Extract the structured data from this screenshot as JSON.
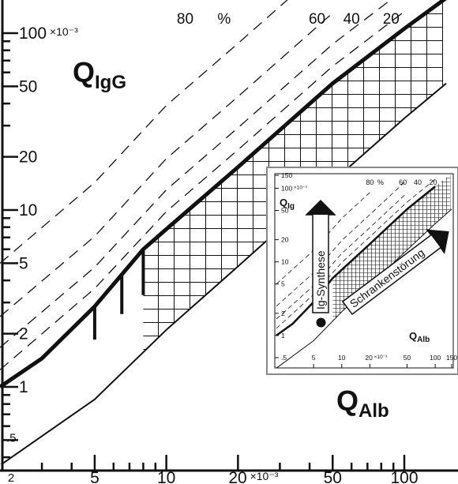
{
  "chart_data": [
    {
      "type": "line",
      "title": "",
      "xlabel": {
        "main": "Q",
        "sub": "Alb"
      },
      "ylabel": {
        "main": "Q",
        "sub": "IgG"
      },
      "x_scale": "log",
      "y_scale": "log",
      "xlim": [
        0.002,
        0.15
      ],
      "ylim": [
        0.0004,
        0.12
      ],
      "x_ticks": [
        {
          "value": 0.002,
          "label": "2"
        },
        {
          "value": 0.005,
          "label": "5"
        },
        {
          "value": 0.01,
          "label": "10"
        },
        {
          "value": 0.02,
          "label": "20",
          "unit": "×10⁻³"
        },
        {
          "value": 0.05,
          "label": "50"
        },
        {
          "value": 0.1,
          "label": "100"
        }
      ],
      "y_ticks": [
        {
          "value": 0.0005,
          "label": ".5"
        },
        {
          "value": 0.001,
          "label": "1"
        },
        {
          "value": 0.002,
          "label": "2"
        },
        {
          "value": 0.005,
          "label": "5"
        },
        {
          "value": 0.01,
          "label": "10"
        },
        {
          "value": 0.02,
          "label": "20"
        },
        {
          "value": 0.05,
          "label": "50"
        },
        {
          "value": 0.1,
          "label": "100",
          "unit": "×10⁻³"
        }
      ],
      "series": [
        {
          "role": "upper-reference",
          "style": "thick",
          "points": [
            [
              0.002,
              0.001
            ],
            [
              0.003,
              0.00145
            ],
            [
              0.005,
              0.00285
            ],
            [
              0.008,
              0.006
            ],
            [
              0.01,
              0.0078
            ],
            [
              0.02,
              0.0175
            ],
            [
              0.05,
              0.052
            ],
            [
              0.1,
              0.106
            ],
            [
              0.15,
              0.158
            ]
          ]
        },
        {
          "role": "lower-reference",
          "style": "thin",
          "points": [
            [
              0.002,
              0.00036
            ],
            [
              0.005,
              0.00085
            ],
            [
              0.01,
              0.0021
            ],
            [
              0.02,
              0.0048
            ],
            [
              0.05,
              0.0145
            ],
            [
              0.1,
              0.033
            ],
            [
              0.15,
              0.052
            ]
          ]
        },
        {
          "name": "20",
          "style": "dashed",
          "points": [
            [
              0.002,
              0.00125
            ],
            [
              0.005,
              0.0036
            ],
            [
              0.01,
              0.0098
            ],
            [
              0.02,
              0.0219
            ],
            [
              0.05,
              0.065
            ],
            [
              0.1,
              0.1325
            ]
          ]
        },
        {
          "name": "40",
          "style": "dashed",
          "points": [
            [
              0.002,
              0.00167
            ],
            [
              0.005,
              0.00475
            ],
            [
              0.01,
              0.013
            ],
            [
              0.02,
              0.0292
            ],
            [
              0.05,
              0.0867
            ],
            [
              0.1,
              0.1767
            ]
          ]
        },
        {
          "name": "60",
          "style": "dashed",
          "points": [
            [
              0.002,
              0.0025
            ],
            [
              0.005,
              0.0071
            ],
            [
              0.01,
              0.0195
            ],
            [
              0.02,
              0.0438
            ],
            [
              0.05,
              0.13
            ]
          ]
        },
        {
          "name": "80",
          "style": "dashed",
          "points": [
            [
              0.002,
              0.005
            ],
            [
              0.005,
              0.0143
            ],
            [
              0.01,
              0.039
            ],
            [
              0.02,
              0.0875
            ],
            [
              0.035,
              0.17
            ]
          ]
        }
      ],
      "percent_label": "%",
      "grid": false,
      "annotations": {
        "reference_ticks_x": [
          0.005,
          0.0065,
          0.008
        ],
        "hatched_region": "between reference lines, x > 0.008"
      }
    },
    {
      "type": "line",
      "role": "inset",
      "xlabel": {
        "main": "Q",
        "sub": "Alb"
      },
      "ylabel": {
        "main": "Q",
        "sub": "Ig"
      },
      "x_scale": "log",
      "y_scale": "log",
      "xlim": [
        0.002,
        0.15
      ],
      "ylim": [
        0.0004,
        0.15
      ],
      "x_ticks": [
        {
          "value": 0.005,
          "label": "5"
        },
        {
          "value": 0.01,
          "label": "10"
        },
        {
          "value": 0.02,
          "label": "20",
          "unit": "×10⁻³"
        },
        {
          "value": 0.05,
          "label": "50"
        },
        {
          "value": 0.1,
          "label": "100"
        },
        {
          "value": 0.15,
          "label": "150"
        }
      ],
      "y_ticks": [
        {
          "value": 0.0005,
          "label": ".5"
        },
        {
          "value": 0.001,
          "label": "1"
        },
        {
          "value": 0.002,
          "label": "2"
        },
        {
          "value": 0.005,
          "label": "5"
        },
        {
          "value": 0.01,
          "label": "10"
        },
        {
          "value": 0.02,
          "label": "20"
        },
        {
          "value": 0.05,
          "label": "50"
        },
        {
          "value": 0.1,
          "label": "100",
          "unit": "×10⁻³"
        },
        {
          "value": 0.15,
          "label": "150"
        }
      ],
      "percent_labels": [
        "80",
        "%",
        "60",
        "40",
        "20"
      ],
      "arrows": [
        {
          "label": "Ig-Synthese",
          "direction": "up"
        },
        {
          "label": "Schrankenstörung",
          "direction": "up-right"
        }
      ],
      "marker": {
        "x": 0.006,
        "y": 0.0015
      }
    }
  ]
}
